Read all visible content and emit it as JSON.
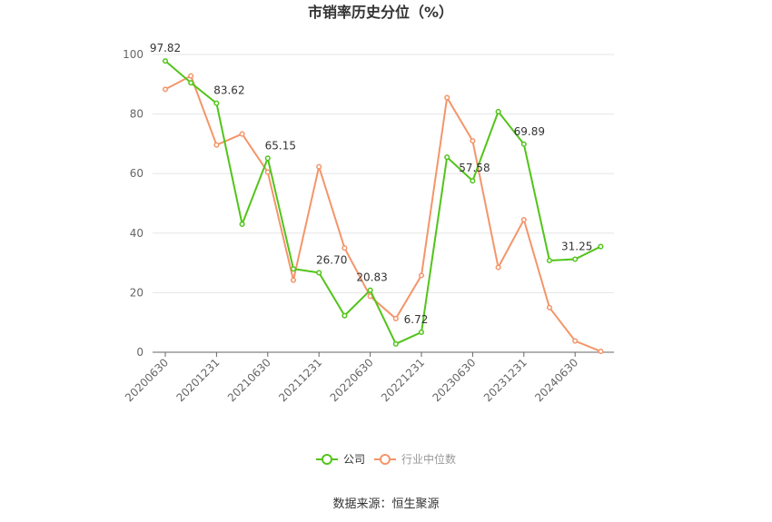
{
  "chart_data": {
    "type": "line",
    "title": "市销率历史分位（%）",
    "ylim": [
      0,
      100
    ],
    "yticks": [
      "0",
      "20",
      "40",
      "60",
      "80",
      "100"
    ],
    "xtick_labels": [
      "20200630",
      "20201231",
      "20210630",
      "20211231",
      "20220630",
      "20221231",
      "20230630",
      "20231231",
      "20240630"
    ],
    "x": [
      "20200630",
      "20200930",
      "20201231",
      "20210331",
      "20210630",
      "20210930",
      "20211231",
      "20220331",
      "20220630",
      "20220930",
      "20221231",
      "20230331",
      "20230630",
      "20230930",
      "20231231",
      "20240331",
      "20240630",
      "20240930"
    ],
    "series": [
      {
        "name": "公司",
        "color": "#52c41a",
        "values": [
          97.82,
          90.5,
          83.62,
          43.0,
          65.15,
          28.0,
          26.7,
          12.3,
          20.83,
          2.8,
          6.72,
          65.5,
          57.58,
          80.8,
          69.89,
          30.8,
          31.25,
          35.5
        ],
        "labels": [
          "97.82",
          "",
          "83.62",
          "",
          "65.15",
          "",
          "26.70",
          "",
          "20.83",
          "",
          "6.72",
          "",
          "57.58",
          "",
          "69.89",
          "",
          "31.25",
          ""
        ]
      },
      {
        "name": "行业中位数",
        "color": "#f4956a",
        "values": [
          88.3,
          92.8,
          69.6,
          73.3,
          60.5,
          24.2,
          62.3,
          35.0,
          18.8,
          11.3,
          25.8,
          85.5,
          71.0,
          28.5,
          44.5,
          15.0,
          3.8,
          0.3
        ]
      }
    ],
    "grid": true,
    "legend": "bottom-center"
  },
  "source": "数据来源：恒生聚源"
}
